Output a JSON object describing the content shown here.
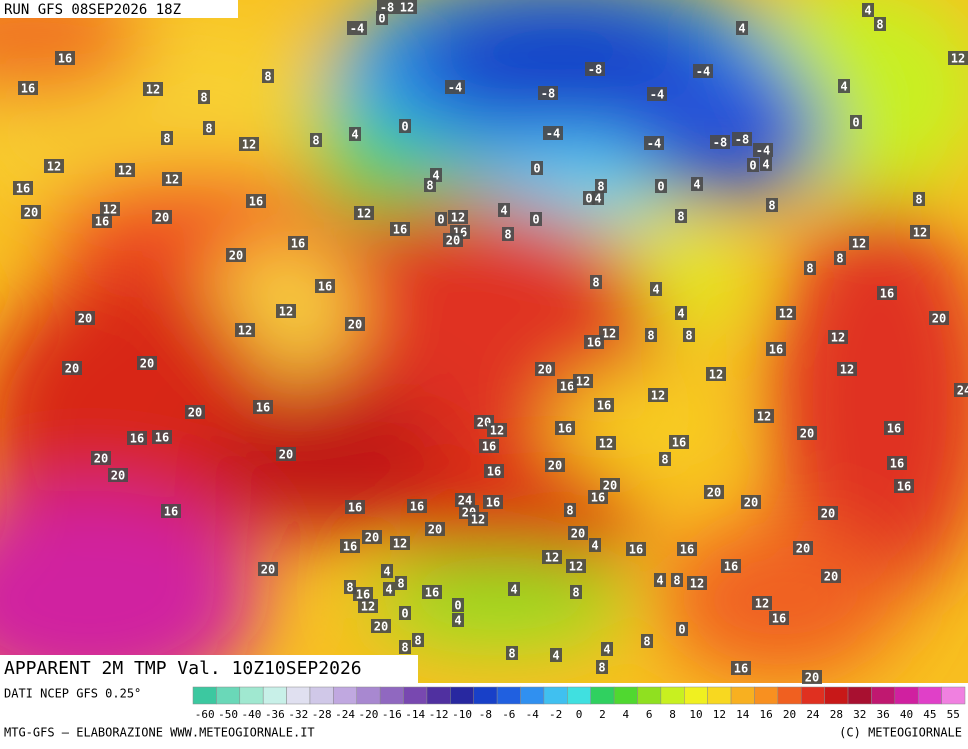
{
  "header": {
    "run": "RUN GFS 08SEP2026 18Z"
  },
  "field_title": "APPARENT 2M TMP Val. 10Z10SEP2026",
  "source": "DATI NCEP GFS 0.25°",
  "footer": {
    "left": "MTG-GFS — ELABORAZIONE WWW.METEOGIORNALE.IT",
    "right": "(C) METEOGIORNALE"
  },
  "colorbar": {
    "ticks": [
      -60,
      -50,
      -40,
      -36,
      -32,
      -28,
      -24,
      -20,
      -16,
      -14,
      -12,
      -10,
      -8,
      -6,
      -4,
      -2,
      0,
      2,
      4,
      6,
      8,
      10,
      12,
      14,
      16,
      20,
      24,
      28,
      32,
      36,
      40,
      45,
      55
    ],
    "colors": [
      "#3cc8a0",
      "#6ad8b8",
      "#a0e8d0",
      "#c8f0e8",
      "#e0e0f0",
      "#d0c8e8",
      "#c0a8e0",
      "#a888d0",
      "#9068c0",
      "#7848b0",
      "#5030a0",
      "#2828a0",
      "#1840c8",
      "#2060e0",
      "#3090f0",
      "#40c0f0",
      "#40e0e0",
      "#30d060",
      "#50d830",
      "#90e020",
      "#c8f020",
      "#f0f020",
      "#f8d820",
      "#f8b020",
      "#f89020",
      "#f06020",
      "#e03020",
      "#c81818",
      "#a81030",
      "#c01870",
      "#d020a0",
      "#e040c8",
      "#f080e0"
    ]
  },
  "map_labels": [
    0,
    12,
    -8,
    -4,
    4,
    4,
    8,
    12,
    16,
    8,
    16,
    12,
    8,
    -8,
    -4,
    -4,
    -8,
    -4,
    4,
    8,
    8,
    12,
    8,
    4,
    0,
    0,
    -4,
    -4,
    -8,
    -8,
    -4,
    12,
    12,
    12,
    4,
    8,
    0,
    0,
    4,
    8,
    0,
    4,
    16,
    0,
    4,
    16,
    12,
    20,
    12,
    16,
    20,
    16,
    0,
    12,
    16,
    20,
    4,
    0,
    8,
    8,
    8,
    16,
    20,
    8,
    12,
    12,
    8,
    8,
    8,
    4,
    16,
    16,
    20,
    12,
    12,
    20,
    4,
    20,
    12,
    16,
    8,
    8,
    12,
    12,
    16,
    20,
    20,
    20,
    16,
    12,
    12,
    12,
    24,
    16,
    20,
    16,
    12,
    12,
    16,
    16,
    20,
    12,
    16,
    16,
    12,
    16,
    20,
    16,
    20,
    20,
    16,
    20,
    8,
    16,
    20,
    20,
    16,
    20,
    16,
    24,
    16,
    20,
    16,
    16,
    20,
    12,
    8,
    16,
    20,
    20,
    20,
    20,
    16,
    12,
    4,
    16,
    16,
    20,
    12,
    12,
    4,
    20,
    16,
    20,
    4,
    8,
    12,
    8,
    4,
    8,
    16,
    16,
    4,
    8,
    12,
    0,
    0,
    4,
    12,
    16,
    0,
    20,
    8,
    8,
    8,
    4,
    8,
    4,
    8,
    16,
    20
  ]
}
